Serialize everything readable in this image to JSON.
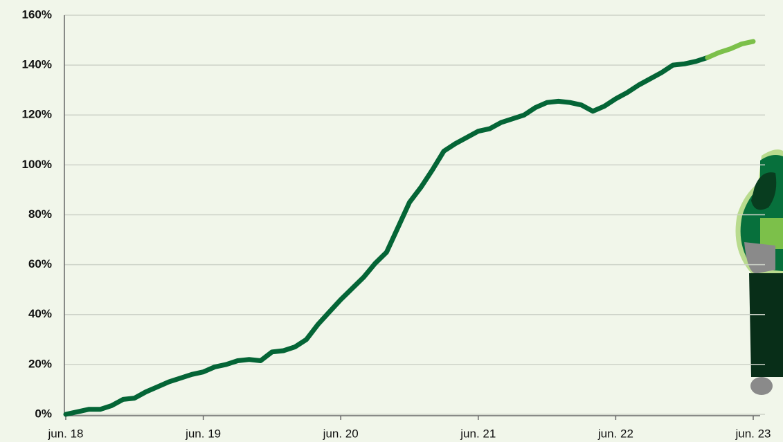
{
  "chart_data": {
    "type": "line",
    "categories": [
      "jun. 18",
      null,
      null,
      null,
      null,
      null,
      null,
      null,
      null,
      null,
      null,
      null,
      "jun. 19",
      null,
      null,
      null,
      null,
      null,
      null,
      null,
      null,
      null,
      null,
      null,
      "jun. 20",
      null,
      null,
      null,
      null,
      null,
      null,
      null,
      null,
      null,
      null,
      null,
      "jun. 21",
      null,
      null,
      null,
      null,
      null,
      null,
      null,
      null,
      null,
      null,
      null,
      "jun. 22",
      null,
      null,
      null,
      null,
      null,
      null,
      null,
      null,
      null,
      null,
      null,
      "jun. 23"
    ],
    "series": [
      {
        "color": "#046536",
        "values": [
          0,
          1,
          2,
          2,
          3.5,
          6,
          6.5,
          9,
          11,
          13,
          14.5,
          16,
          17,
          19,
          20,
          21.5,
          22,
          21.5,
          25,
          25.5,
          27,
          30,
          36,
          41,
          46,
          50.5,
          55,
          60.5,
          65,
          75,
          85,
          91,
          98,
          105.5,
          108.5,
          111,
          113.5,
          114.5,
          117,
          118.5,
          120,
          123,
          125,
          125.5,
          125,
          124,
          121.5,
          123.5,
          126.5,
          129,
          132,
          134.5,
          137,
          140,
          140.5,
          141.5,
          143,
          null,
          null,
          null,
          null
        ]
      },
      {
        "color": "#7cc04a",
        "values": [
          null,
          null,
          null,
          null,
          null,
          null,
          null,
          null,
          null,
          null,
          null,
          null,
          null,
          null,
          null,
          null,
          null,
          null,
          null,
          null,
          null,
          null,
          null,
          null,
          null,
          null,
          null,
          null,
          null,
          null,
          null,
          null,
          null,
          null,
          null,
          null,
          null,
          null,
          null,
          null,
          null,
          null,
          null,
          null,
          null,
          null,
          null,
          null,
          null,
          null,
          null,
          null,
          null,
          null,
          null,
          null,
          143,
          145,
          146.5,
          148.5,
          149.5
        ]
      }
    ],
    "ylim": [
      0,
      160
    ],
    "yticks": [
      {
        "value": 0,
        "label": "0%"
      },
      {
        "value": 20,
        "label": "20%"
      },
      {
        "value": 40,
        "label": "40%"
      },
      {
        "value": 60,
        "label": "60%"
      },
      {
        "value": 80,
        "label": "80%"
      },
      {
        "value": 100,
        "label": "100%"
      },
      {
        "value": 120,
        "label": "120%"
      },
      {
        "value": 140,
        "label": "140%"
      },
      {
        "value": 160,
        "label": "160%"
      }
    ],
    "grid": true
  }
}
